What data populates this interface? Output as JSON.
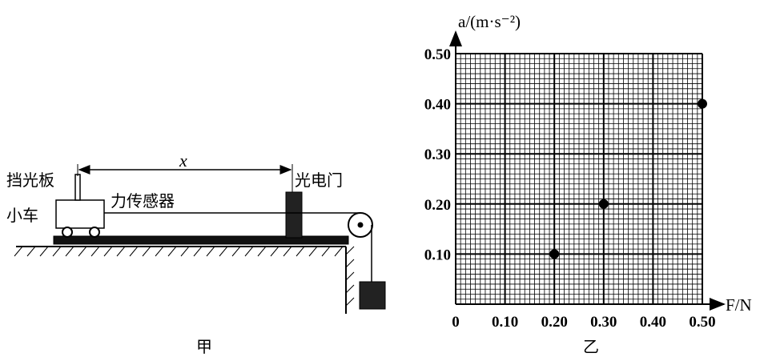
{
  "diagram": {
    "flag": "挡光板",
    "cart": "小车",
    "sensor": "力传感器",
    "distance": "x",
    "gate": "光电门",
    "caption": "甲"
  },
  "chart_data": {
    "type": "scatter",
    "caption": "乙",
    "ylabel": "a/(m·s⁻²)",
    "xlabel": "F/N",
    "x": [
      0.2,
      0.3,
      0.5
    ],
    "values": [
      0.1,
      0.2,
      0.4
    ],
    "color": "#000",
    "xlim": [
      0,
      0.5
    ],
    "ylim": [
      0,
      0.5
    ],
    "xticks": [
      0,
      {
        "value": 0.1,
        "label": "0.10"
      },
      {
        "value": 0.2,
        "label": "0.20"
      },
      {
        "value": 0.3,
        "label": "0.30"
      },
      {
        "value": 0.4,
        "label": "0.40"
      },
      {
        "value": 0.5,
        "label": "0.50"
      }
    ],
    "yticks": [
      {
        "value": 0.1,
        "label": "0.10"
      },
      {
        "value": 0.2,
        "label": "0.20"
      },
      {
        "value": 0.3,
        "label": "0.30"
      },
      {
        "value": 0.4,
        "label": "0.40"
      },
      {
        "value": 0.5,
        "label": "0.50"
      }
    ],
    "grid": true,
    "minor_grid": 10
  }
}
